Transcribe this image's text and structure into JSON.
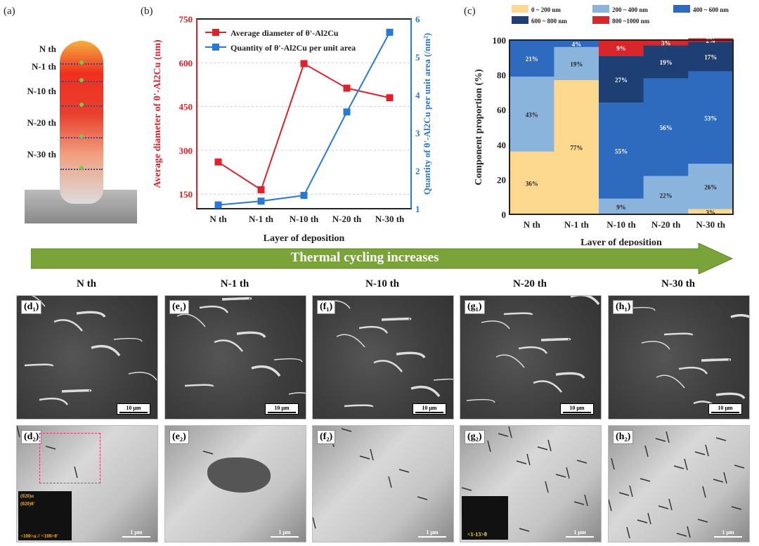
{
  "panels": {
    "a": "(a)",
    "b": "(b)",
    "c": "(c)"
  },
  "panel_a": {
    "layers": [
      "N th",
      "N-1 th",
      "N-10 th",
      "N-20 th",
      "N-30 th"
    ]
  },
  "arrow_text": "Thermal cycling increases",
  "columns": [
    "N th",
    "N-1 th",
    "N-10 th",
    "N-20 th",
    "N-30 th"
  ],
  "sem_tags": [
    "(d₁)",
    "(e₁)",
    "(f₁)",
    "(g₁)",
    "(h₁)"
  ],
  "tem_tags": [
    "(d₂)",
    "(e₂)",
    "(f₂)",
    "(g₂)",
    "(h₂)"
  ],
  "sem_scale": "10 μm",
  "tem_scale": "1 μm",
  "saed_d": {
    "l1": "(020)α",
    "l2": "(020)θ'",
    "axis": "<100>α // <100>θ'"
  },
  "saed_g": {
    "axis": "<1-13>θ"
  },
  "chart_data": [
    {
      "type": "line",
      "title": "",
      "xlabel": "Layer of deposition",
      "categories": [
        "N th",
        "N-1 th",
        "N-10 th",
        "N-20 th",
        "N-30 th"
      ],
      "ylabel": "Average diameter of θ'-Al2Cu (nm)",
      "ylim": [
        100,
        750
      ],
      "yticks": [
        150,
        300,
        450,
        600,
        750
      ],
      "y2label": "Quantity of θ'-Al2Cu per unit area (/nm²)",
      "y2lim": [
        1,
        6
      ],
      "y2ticks": [
        1,
        2,
        3,
        4,
        5,
        6
      ],
      "legend": "top-left",
      "series": [
        {
          "name": "Average diameter of θ'-Al2Cu",
          "axis": "left",
          "color": "#e0202a",
          "values": [
            260,
            165,
            597,
            513,
            480
          ]
        },
        {
          "name": "Quantity of θ'-Al2Cu per unit area",
          "axis": "right",
          "color": "#2a78d6",
          "values": [
            1.1,
            1.2,
            1.35,
            3.55,
            5.65
          ]
        }
      ]
    },
    {
      "type": "bar",
      "stacked": true,
      "xlabel": "Layer of deposition",
      "ylabel": "Component proportion (%)",
      "ylim": [
        0,
        100
      ],
      "yticks": [
        0,
        20,
        40,
        60,
        80,
        100
      ],
      "categories": [
        "N th",
        "N-1 th",
        "N-10 th",
        "N-20 th",
        "N-30 th"
      ],
      "legend": "top",
      "series": [
        {
          "name": "0 ~ 200 nm",
          "color": "#fcd98f",
          "values": [
            36,
            77,
            0,
            0,
            3
          ]
        },
        {
          "name": "200 ~ 400 nm",
          "color": "#8ab4dc",
          "values": [
            43,
            19,
            9,
            22,
            26
          ]
        },
        {
          "name": "400 ~ 600 nm",
          "color": "#2e6bbf",
          "values": [
            21,
            4,
            55,
            56,
            53
          ]
        },
        {
          "name": "600 ~ 800 nm",
          "color": "#1d3f73",
          "values": [
            0,
            0,
            27,
            19,
            17
          ]
        },
        {
          "name": "800 ~1000 nm",
          "color": "#d9262a",
          "values": [
            0,
            0,
            9,
            3,
            2
          ]
        }
      ]
    }
  ]
}
